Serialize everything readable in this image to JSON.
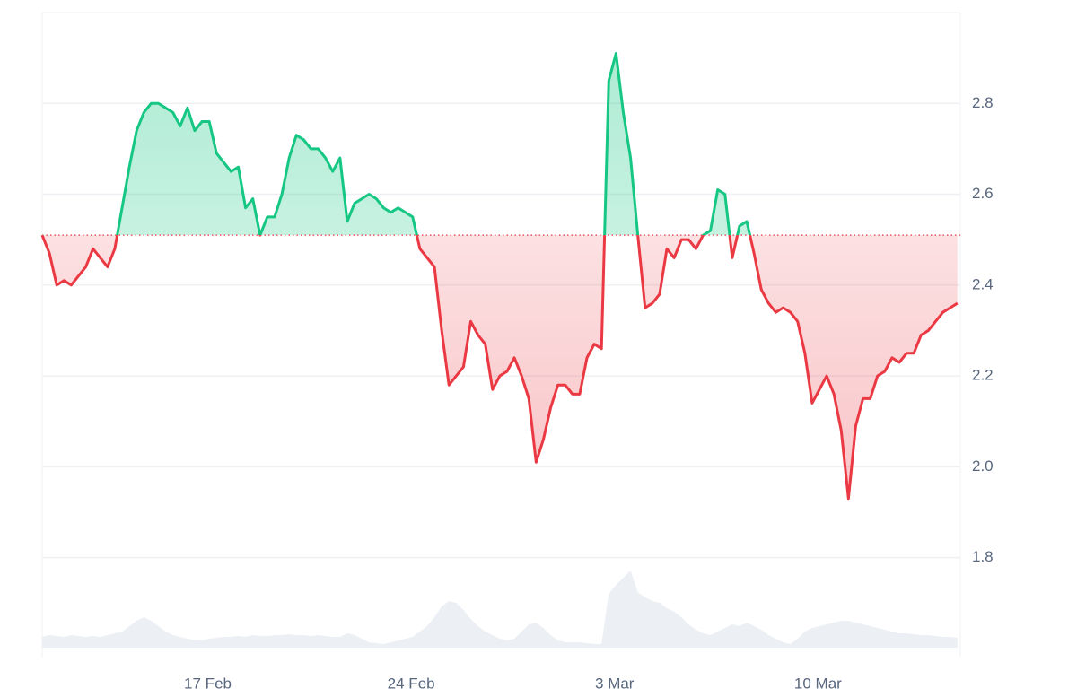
{
  "chart_data": {
    "type": "baseline-line",
    "x": [
      42.3,
      42.55,
      42.8,
      43.05,
      43.3,
      43.55,
      43.8,
      44.05,
      44.3,
      44.55,
      44.8,
      45.05,
      45.3,
      45.55,
      45.8,
      46.05,
      46.3,
      46.55,
      46.8,
      47.05,
      47.3,
      47.55,
      47.8,
      48.05,
      48.3,
      48.55,
      48.8,
      49.05,
      49.3,
      49.55,
      49.8,
      50.05,
      50.3,
      50.55,
      50.8,
      51.05,
      51.3,
      51.55,
      51.8,
      52.05,
      52.3,
      52.55,
      52.8,
      53.05,
      53.3,
      53.55,
      53.8,
      54.05,
      54.3,
      54.55,
      54.8,
      55.05,
      55.3,
      55.55,
      55.8,
      56.05,
      56.3,
      56.55,
      56.8,
      57.05,
      57.3,
      57.55,
      57.8,
      58.05,
      58.3,
      58.55,
      58.8,
      59.05,
      59.3,
      59.55,
      59.8,
      60.05,
      60.3,
      60.55,
      60.8,
      61.05,
      61.3,
      61.55,
      61.8,
      62.05,
      62.3,
      62.55,
      62.8,
      63.05,
      63.3,
      63.55,
      63.8,
      64.05,
      64.3,
      64.55,
      64.8,
      65.05,
      65.3,
      65.55,
      65.8,
      66.05,
      66.3,
      66.55,
      66.8,
      67.05,
      67.3,
      67.55,
      67.8,
      68.05,
      68.3,
      68.55,
      68.8,
      69.05,
      69.3,
      69.55,
      69.8,
      70.05,
      70.3,
      70.55,
      70.8,
      71.05,
      71.3,
      71.55,
      71.8,
      72.05,
      72.3,
      72.55,
      72.8,
      73.05,
      73.3,
      73.55,
      73.8
    ],
    "values": [
      2.51,
      2.47,
      2.4,
      2.41,
      2.4,
      2.42,
      2.44,
      2.48,
      2.46,
      2.44,
      2.48,
      2.57,
      2.66,
      2.74,
      2.78,
      2.8,
      2.8,
      2.79,
      2.78,
      2.75,
      2.79,
      2.74,
      2.76,
      2.76,
      2.69,
      2.67,
      2.65,
      2.66,
      2.57,
      2.59,
      2.51,
      2.55,
      2.55,
      2.6,
      2.68,
      2.73,
      2.72,
      2.7,
      2.7,
      2.68,
      2.65,
      2.68,
      2.54,
      2.58,
      2.59,
      2.6,
      2.59,
      2.57,
      2.56,
      2.57,
      2.56,
      2.55,
      2.48,
      2.46,
      2.44,
      2.3,
      2.18,
      2.2,
      2.22,
      2.32,
      2.29,
      2.27,
      2.17,
      2.2,
      2.21,
      2.24,
      2.2,
      2.15,
      2.01,
      2.06,
      2.13,
      2.18,
      2.18,
      2.16,
      2.16,
      2.24,
      2.27,
      2.26,
      2.85,
      2.91,
      2.78,
      2.68,
      2.51,
      2.35,
      2.36,
      2.38,
      2.48,
      2.46,
      2.5,
      2.5,
      2.48,
      2.51,
      2.52,
      2.61,
      2.6,
      2.46,
      2.53,
      2.54,
      2.47,
      2.39,
      2.36,
      2.34,
      2.35,
      2.34,
      2.32,
      2.25,
      2.14,
      2.17,
      2.2,
      2.16,
      2.08,
      1.93,
      2.09,
      2.15,
      2.15,
      2.2,
      2.21,
      2.24,
      2.23,
      2.25,
      2.25,
      2.29,
      2.3,
      2.32,
      2.34,
      2.35,
      2.36
    ],
    "volume": [
      12,
      14,
      13,
      12,
      14,
      13,
      12,
      13,
      12,
      14,
      16,
      18,
      24,
      30,
      34,
      30,
      24,
      18,
      14,
      12,
      10,
      8,
      8,
      10,
      11,
      12,
      12,
      13,
      12,
      14,
      13,
      13,
      14,
      14,
      15,
      14,
      14,
      13,
      14,
      13,
      12,
      12,
      16,
      14,
      10,
      6,
      5,
      4,
      6,
      8,
      10,
      12,
      18,
      24,
      34,
      46,
      52,
      50,
      42,
      32,
      24,
      18,
      14,
      10,
      8,
      10,
      18,
      26,
      28,
      22,
      14,
      8,
      6,
      6,
      6,
      5,
      4,
      4,
      60,
      70,
      78,
      86,
      62,
      56,
      52,
      50,
      44,
      40,
      34,
      26,
      20,
      16,
      14,
      18,
      22,
      26,
      24,
      28,
      24,
      20,
      14,
      10,
      6,
      4,
      10,
      18,
      22,
      24,
      26,
      28,
      30,
      30,
      28,
      26,
      24,
      22,
      20,
      18,
      16,
      16,
      15,
      14,
      14,
      13,
      12,
      12,
      11
    ],
    "volume_lim": [
      0,
      120
    ],
    "baseline": 2.51,
    "up_color": "#16c784",
    "down_color": "#ea3943",
    "volume_color": "#eceff3",
    "xlim": [
      42.3,
      73.9
    ],
    "xticks": [
      {
        "value": 48,
        "label": "17 Feb"
      },
      {
        "value": 55,
        "label": "24 Feb"
      },
      {
        "value": 62,
        "label": "3 Mar"
      },
      {
        "value": 69,
        "label": "10 Mar"
      }
    ],
    "ylim": [
      1.58,
      3.0
    ],
    "yticks": [
      1.8,
      {
        "value": 2,
        "label": "2.0"
      },
      2.2,
      2.4,
      2.6,
      2.8
    ],
    "grid": true
  }
}
